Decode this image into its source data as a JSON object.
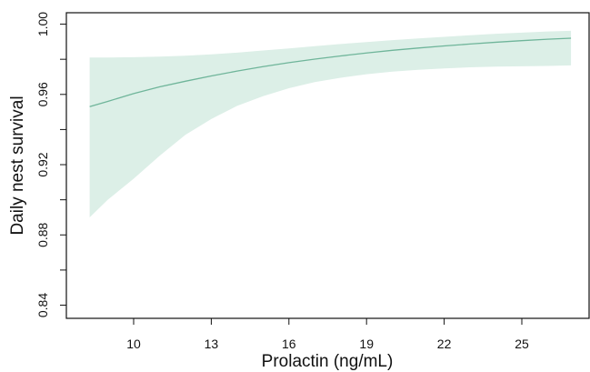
{
  "chart_data": {
    "type": "line",
    "title": "",
    "xlabel": "Prolactin (ng/mL)",
    "ylabel": "Daily nest survival",
    "xlim": [
      7.4,
      27.6
    ],
    "ylim": [
      0.8325,
      1.0065
    ],
    "x_ticks": [
      10,
      13,
      16,
      19,
      22,
      25
    ],
    "x_tick_labels": [
      "10",
      "13",
      "16",
      "19",
      "22",
      "25"
    ],
    "y_ticks": [
      0.84,
      0.86,
      0.88,
      0.9,
      0.92,
      0.94,
      0.96,
      0.98,
      1.0
    ],
    "y_tick_labels": [
      "0.84",
      "",
      "0.88",
      "",
      "0.92",
      "",
      "0.96",
      "",
      "1.00"
    ],
    "grid": false,
    "series": [
      {
        "x": [
          8.3,
          9,
          10,
          11,
          12,
          13,
          14,
          15,
          16,
          17,
          18,
          19,
          20,
          21,
          22,
          23,
          24,
          25,
          26,
          26.9
        ],
        "y": [
          0.953,
          0.956,
          0.9605,
          0.9643,
          0.9675,
          0.9705,
          0.9733,
          0.9758,
          0.9781,
          0.9801,
          0.9819,
          0.9836,
          0.9851,
          0.9864,
          0.9876,
          0.9887,
          0.9897,
          0.9906,
          0.9914,
          0.992
        ],
        "lower": [
          0.89,
          0.9,
          0.912,
          0.925,
          0.937,
          0.946,
          0.9535,
          0.959,
          0.9635,
          0.967,
          0.9695,
          0.9715,
          0.973,
          0.974,
          0.9748,
          0.9754,
          0.9758,
          0.976,
          0.9762,
          0.9765
        ],
        "upper": [
          0.981,
          0.981,
          0.9812,
          0.9815,
          0.982,
          0.9828,
          0.9838,
          0.985,
          0.9862,
          0.9875,
          0.9887,
          0.9898,
          0.9909,
          0.9919,
          0.9928,
          0.9937,
          0.9945,
          0.9952,
          0.9958,
          0.9962
        ]
      }
    ],
    "colors": {
      "line": "#6fb59a",
      "band": "#dcefe7",
      "axis": "#111111"
    }
  }
}
